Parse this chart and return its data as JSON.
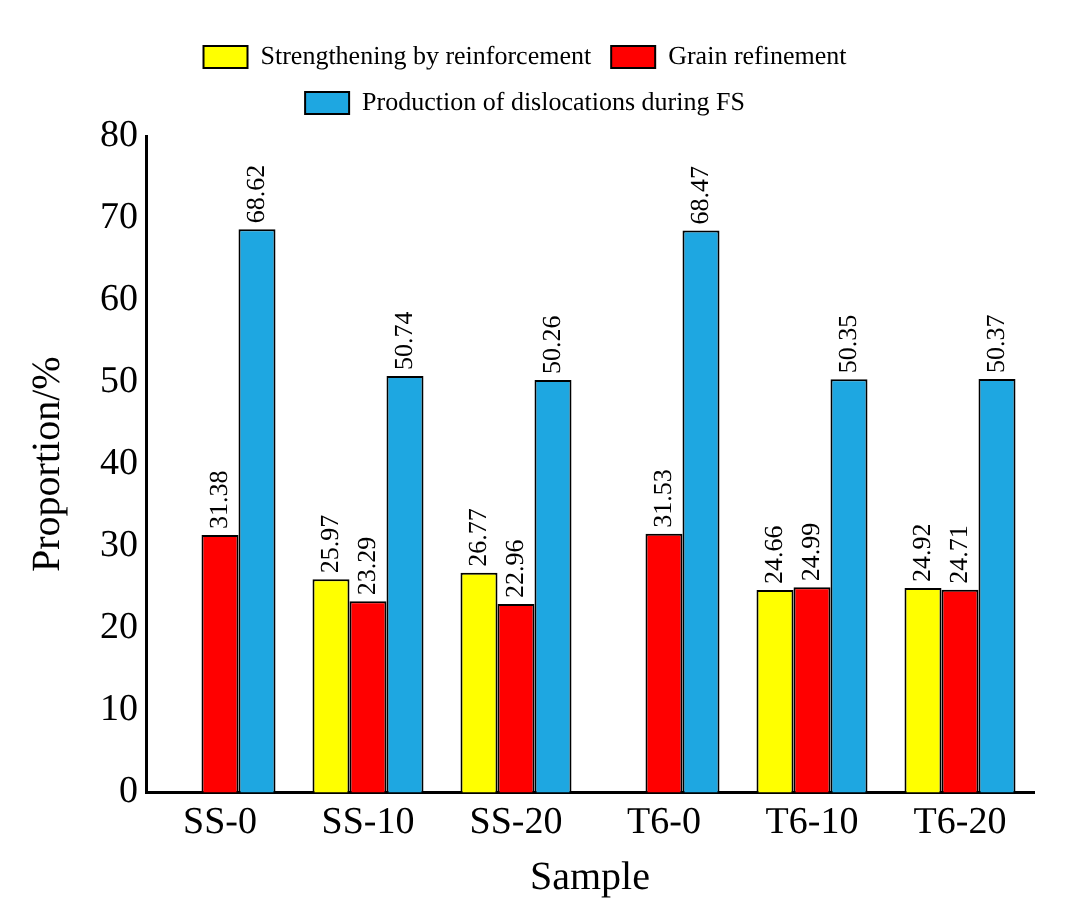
{
  "chart_data": {
    "type": "bar",
    "xlabel": "Sample",
    "ylabel": "Proportion/%",
    "categories": [
      "SS-0",
      "SS-10",
      "SS-20",
      "T6-0",
      "T6-10",
      "T6-20"
    ],
    "series": [
      {
        "name": "Strengthening by reinforcement",
        "color": "#ffff00",
        "values": [
          null,
          25.97,
          26.77,
          null,
          24.66,
          24.92
        ]
      },
      {
        "name": "Grain refinement",
        "color": "#ff0000",
        "values": [
          31.38,
          23.29,
          22.96,
          31.53,
          24.99,
          24.71
        ]
      },
      {
        "name": "Production of dislocations during FS",
        "color": "#1ea7e1",
        "values": [
          68.62,
          50.74,
          50.26,
          68.47,
          50.35,
          50.37
        ]
      }
    ],
    "ylim": [
      0,
      80
    ],
    "yticks": [
      0,
      10,
      20,
      30,
      40,
      50,
      60,
      70,
      80
    ],
    "grid": false,
    "legend": "top",
    "data_labels": true
  }
}
